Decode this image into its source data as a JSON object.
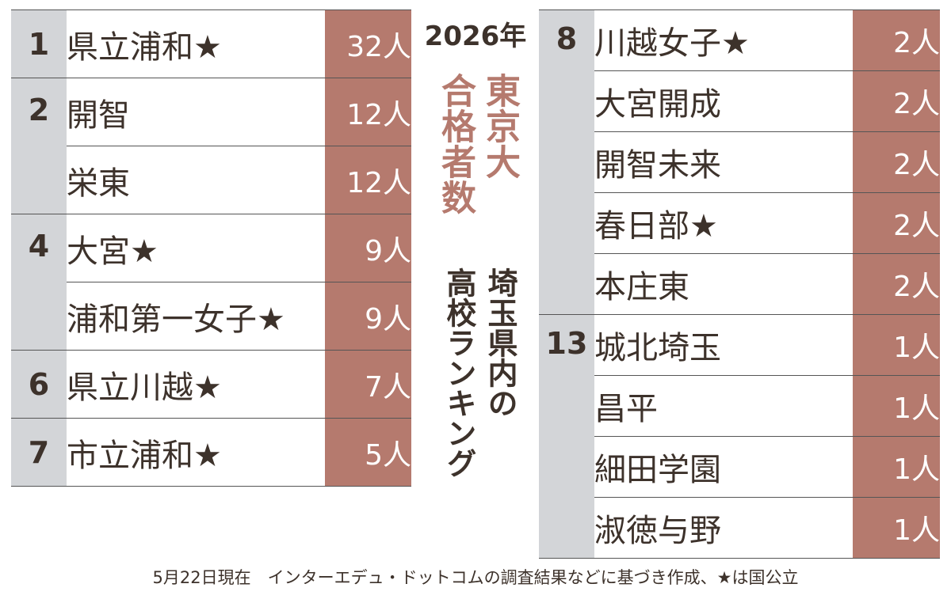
{
  "header": {
    "year": "2026年",
    "title_line1": "東京大",
    "title_line2": "合格者数",
    "subtitle_line1": "埼玉県内の",
    "subtitle_line2": "高校ランキング"
  },
  "left_table": [
    {
      "rank": "1",
      "rows": [
        {
          "name": "県立浦和★",
          "count": "32人"
        }
      ]
    },
    {
      "rank": "2",
      "rows": [
        {
          "name": "開智",
          "count": "12人"
        },
        {
          "name": "栄東",
          "count": "12人"
        }
      ]
    },
    {
      "rank": "4",
      "rows": [
        {
          "name": "大宮★",
          "count": "9人"
        },
        {
          "name": "浦和第一女子★",
          "count": "9人"
        }
      ]
    },
    {
      "rank": "6",
      "rows": [
        {
          "name": "県立川越★",
          "count": "7人"
        }
      ]
    },
    {
      "rank": "7",
      "rows": [
        {
          "name": "市立浦和★",
          "count": "5人"
        }
      ]
    }
  ],
  "right_table": [
    {
      "rank": "8",
      "rows": [
        {
          "name": "川越女子★",
          "count": "2人"
        },
        {
          "name": "大宮開成",
          "count": "2人"
        },
        {
          "name": "開智未来",
          "count": "2人"
        },
        {
          "name": "春日部★",
          "count": "2人"
        },
        {
          "name": "本庄東",
          "count": "2人"
        }
      ]
    },
    {
      "rank": "13",
      "rows": [
        {
          "name": "城北埼玉",
          "count": "1人"
        },
        {
          "name": "昌平",
          "count": "1人"
        },
        {
          "name": "細田学園",
          "count": "1人"
        },
        {
          "name": "淑徳与野",
          "count": "1人"
        }
      ]
    }
  ],
  "footer": "5月22日現在　インターエデュ・ドットコムの調査結果などに基づき作成、★は国公立",
  "colors": {
    "count_bg": "#b57a6e",
    "rank_bg": "#d3d5d8",
    "title_accent": "#b57a6e",
    "text": "#3d322b"
  }
}
